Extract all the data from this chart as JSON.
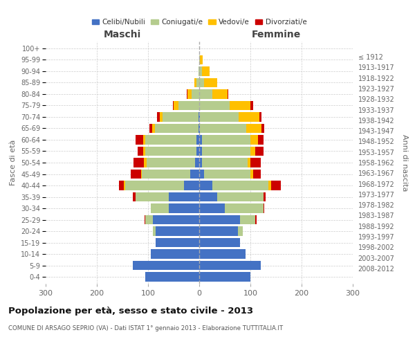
{
  "age_groups": [
    "0-4",
    "5-9",
    "10-14",
    "15-19",
    "20-24",
    "25-29",
    "30-34",
    "35-39",
    "40-44",
    "45-49",
    "50-54",
    "55-59",
    "60-64",
    "65-69",
    "70-74",
    "75-79",
    "80-84",
    "85-89",
    "90-94",
    "95-99",
    "100+"
  ],
  "birth_years": [
    "2008-2012",
    "2003-2007",
    "1998-2002",
    "1993-1997",
    "1988-1992",
    "1983-1987",
    "1978-1982",
    "1973-1977",
    "1968-1972",
    "1963-1967",
    "1958-1962",
    "1953-1957",
    "1948-1952",
    "1943-1947",
    "1938-1942",
    "1933-1937",
    "1928-1932",
    "1923-1927",
    "1918-1922",
    "1913-1917",
    "≤ 1912"
  ],
  "male": {
    "celibi": [
      105,
      130,
      95,
      85,
      85,
      90,
      60,
      60,
      30,
      17,
      8,
      5,
      5,
      2,
      2,
      0,
      0,
      0,
      0,
      0,
      0
    ],
    "coniugati": [
      0,
      0,
      0,
      0,
      5,
      15,
      35,
      65,
      115,
      95,
      95,
      100,
      100,
      85,
      70,
      40,
      15,
      5,
      2,
      0,
      0
    ],
    "vedovi": [
      0,
      0,
      0,
      0,
      0,
      0,
      0,
      0,
      2,
      2,
      5,
      5,
      5,
      5,
      5,
      10,
      8,
      5,
      0,
      0,
      0
    ],
    "divorziati": [
      0,
      0,
      0,
      0,
      0,
      2,
      0,
      5,
      10,
      20,
      20,
      10,
      15,
      5,
      5,
      2,
      2,
      0,
      0,
      0,
      0
    ]
  },
  "female": {
    "nubili": [
      100,
      120,
      90,
      80,
      75,
      80,
      50,
      35,
      25,
      10,
      5,
      5,
      5,
      2,
      2,
      0,
      0,
      0,
      0,
      0,
      0
    ],
    "coniugate": [
      0,
      0,
      0,
      0,
      10,
      30,
      75,
      90,
      110,
      90,
      90,
      95,
      95,
      90,
      75,
      60,
      25,
      10,
      5,
      2,
      0
    ],
    "vedove": [
      0,
      0,
      0,
      0,
      0,
      0,
      0,
      0,
      5,
      5,
      5,
      10,
      15,
      30,
      40,
      40,
      30,
      25,
      15,
      5,
      0
    ],
    "divorziate": [
      0,
      0,
      0,
      0,
      0,
      2,
      2,
      5,
      20,
      15,
      20,
      15,
      10,
      5,
      5,
      5,
      2,
      0,
      0,
      0,
      0
    ]
  },
  "colors": {
    "celibi_nubili": "#4472c4",
    "coniugati": "#b5cc8e",
    "vedovi": "#ffc000",
    "divorziati": "#cc0000"
  },
  "title": "Popolazione per età, sesso e stato civile - 2013",
  "subtitle": "COMUNE DI ARSAGO SEPRIO (VA) - Dati ISTAT 1° gennaio 2013 - Elaborazione TUTTITALIA.IT",
  "xlabel_left": "Maschi",
  "xlabel_right": "Femmine",
  "ylabel_left": "Fasce di età",
  "ylabel_right": "Anni di nascita",
  "xlim": 300,
  "legend_labels": [
    "Celibi/Nubili",
    "Coniugati/e",
    "Vedovi/e",
    "Divorziati/e"
  ]
}
